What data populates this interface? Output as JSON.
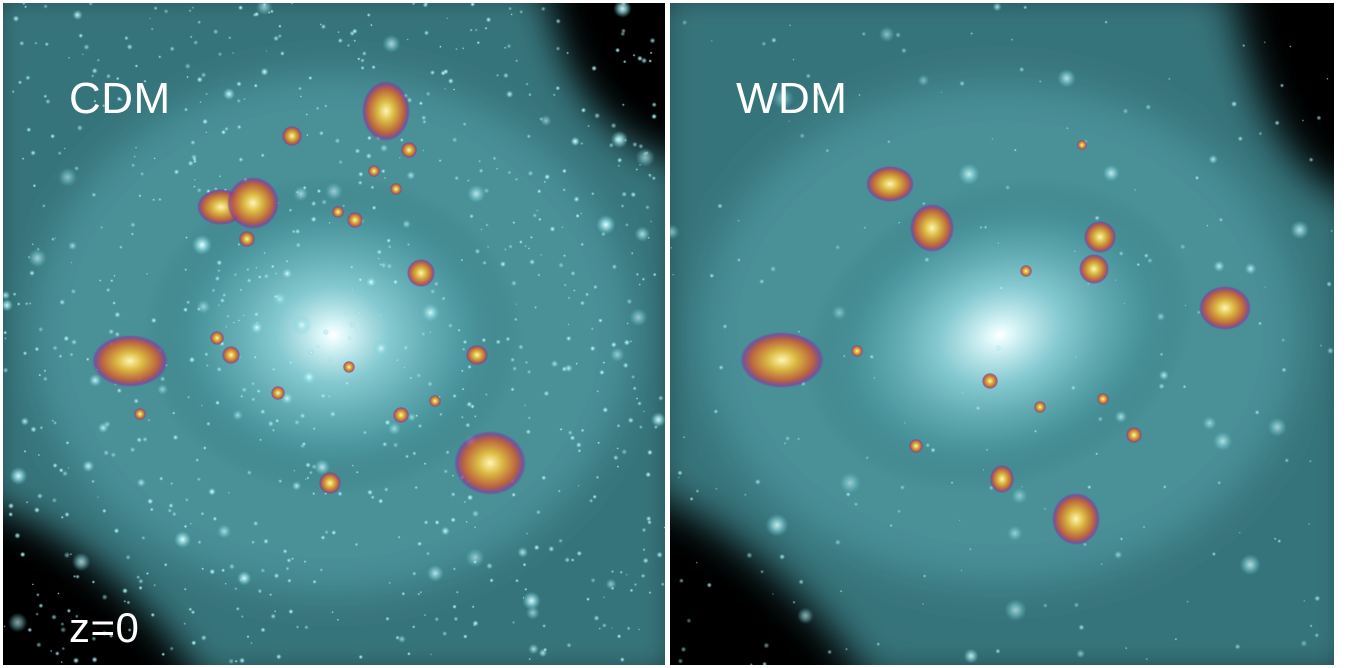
{
  "panels": {
    "left": {
      "label": "CDM",
      "redshift": "z=0"
    },
    "right": {
      "label": "WDM"
    }
  },
  "colors": {
    "halo_cyan": "#7fd6dc",
    "halo_core": "#ffffff",
    "subhalo_gold": "#d9b840",
    "subhalo_rim": "#a0306a",
    "background": "#000000"
  }
}
